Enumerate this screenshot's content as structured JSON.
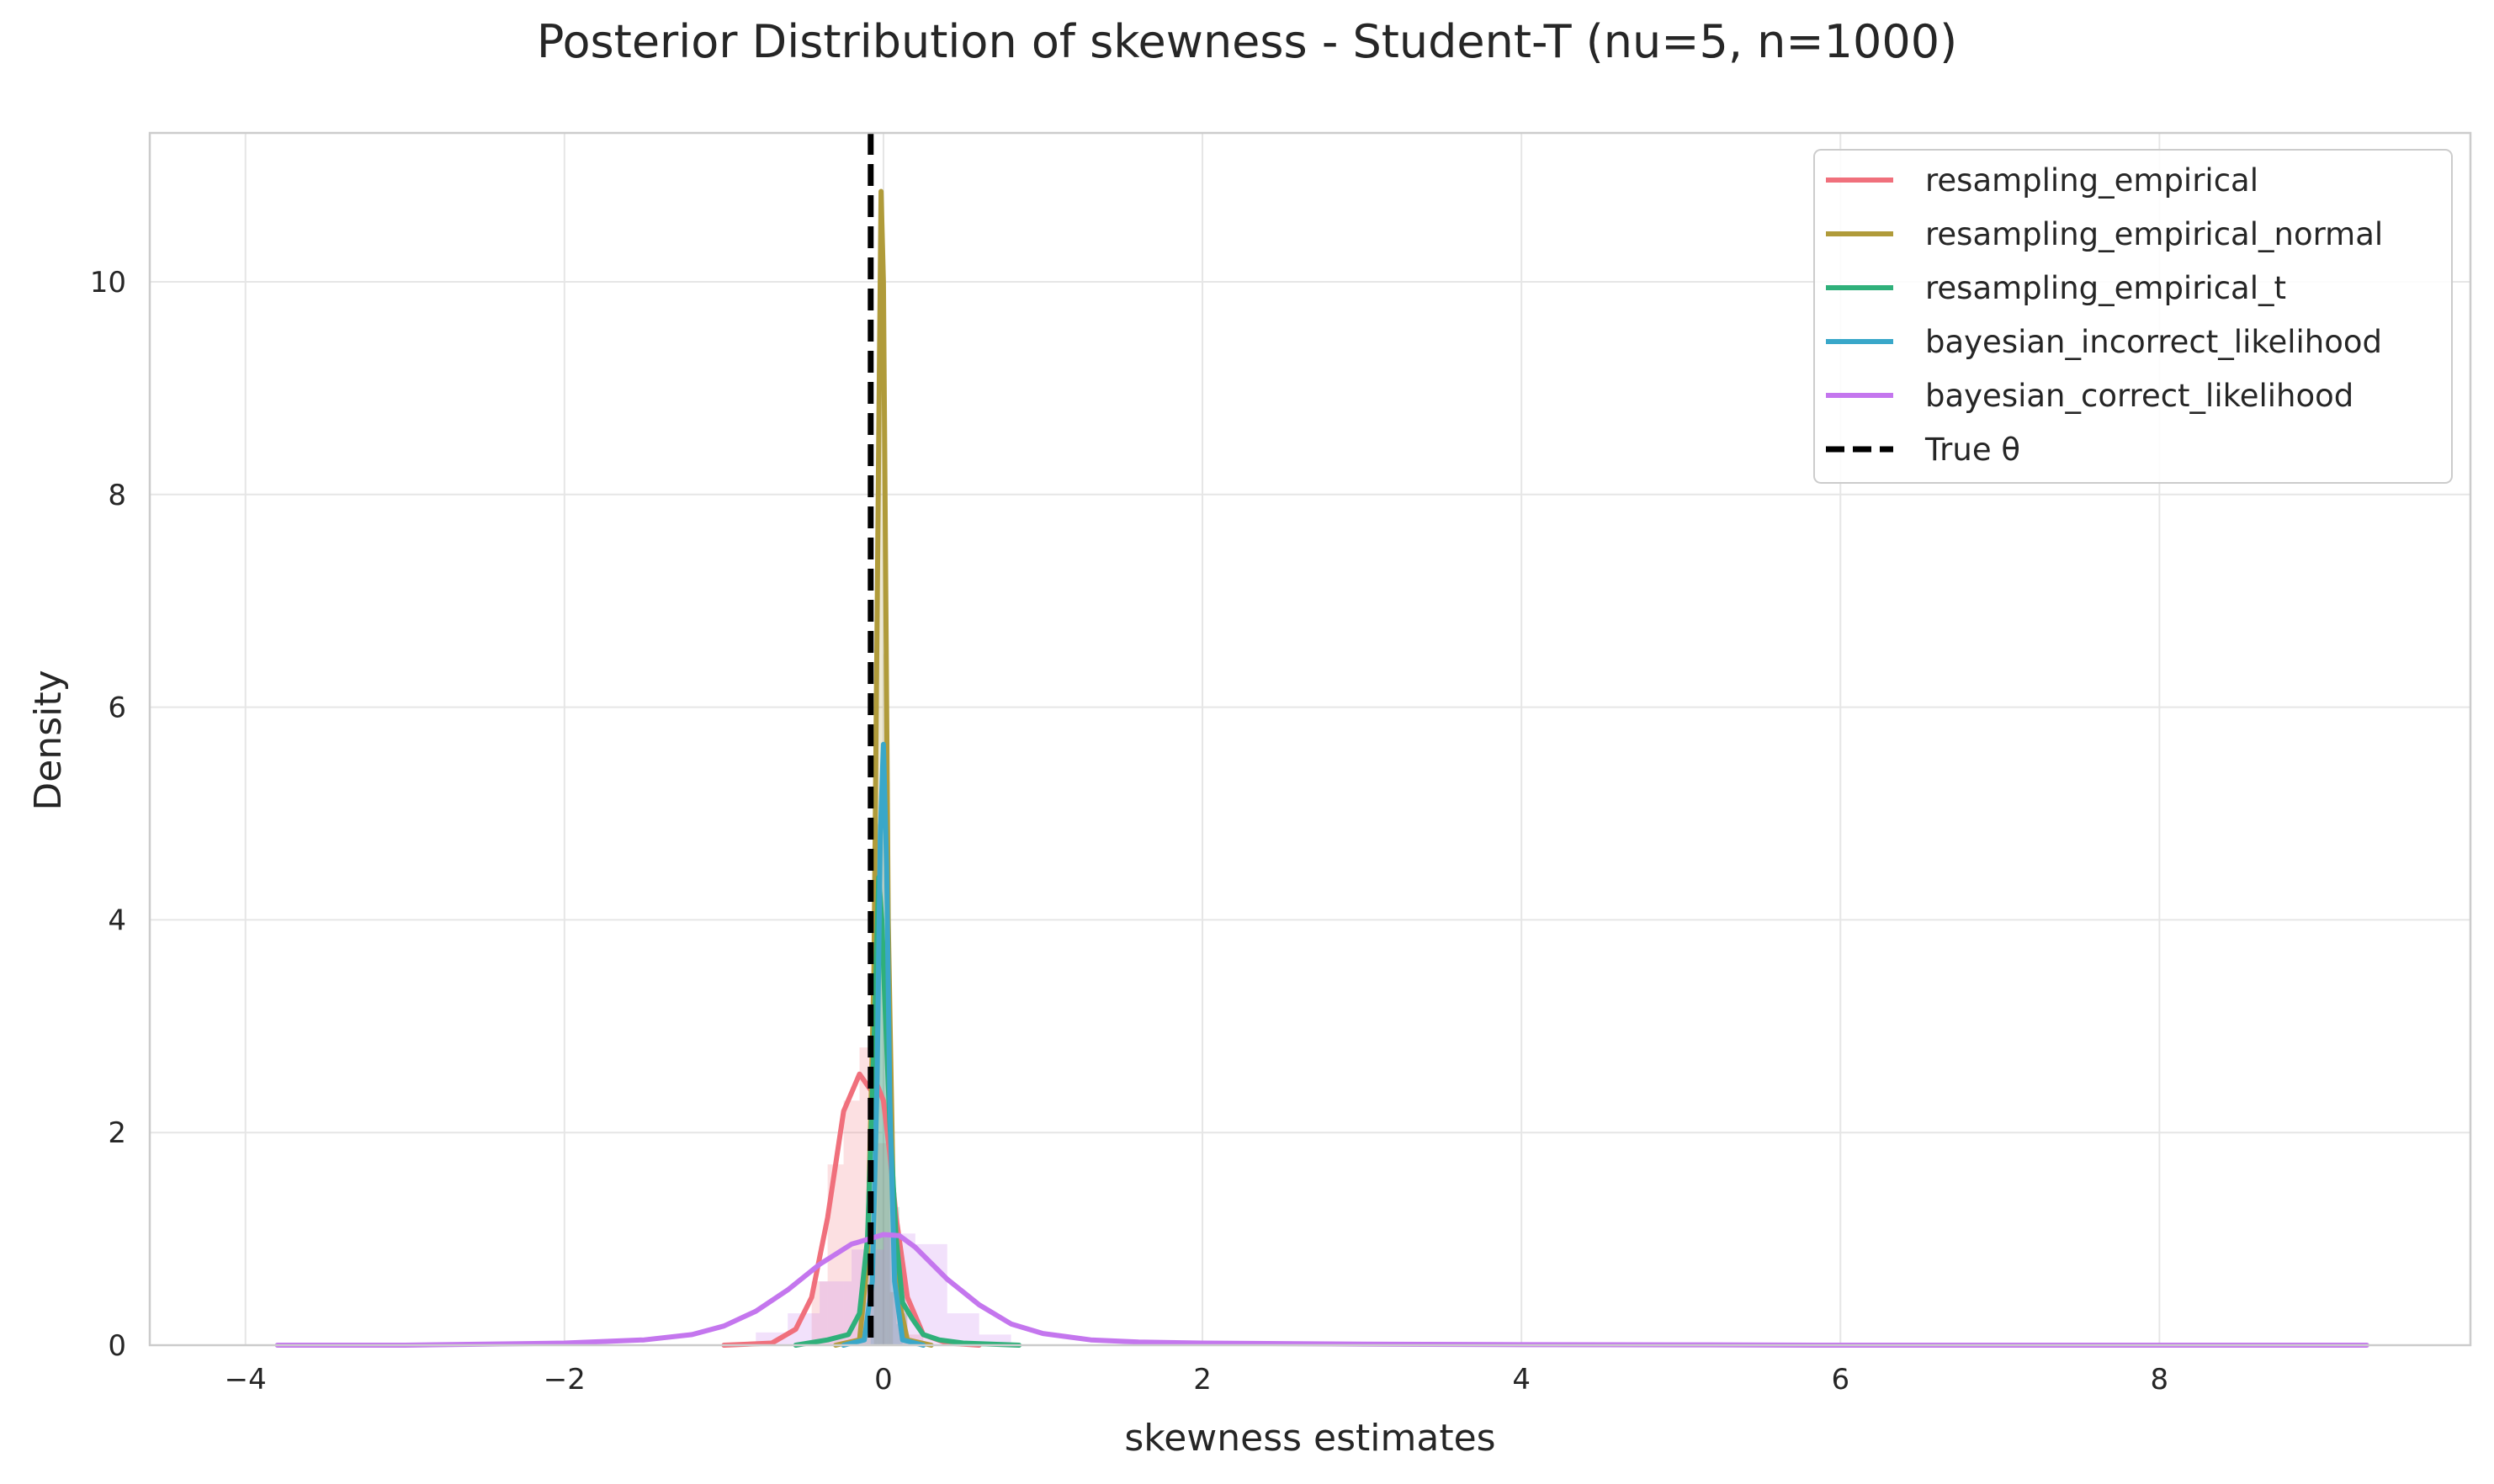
{
  "chart_data": {
    "type": "line",
    "title": "Posterior Distribution of skewness - Student-T (nu=5, n=1000)",
    "xlabel": "skewness estimates",
    "ylabel": "Density",
    "xlim": [
      -4.6,
      9.95
    ],
    "ylim": [
      0,
      11.4
    ],
    "x_ticks": [
      -4,
      -2,
      0,
      2,
      4,
      6,
      8
    ],
    "x_tick_labels": [
      "−4",
      "−2",
      "0",
      "2",
      "4",
      "6",
      "8"
    ],
    "y_ticks": [
      0,
      2,
      4,
      6,
      8,
      10
    ],
    "y_tick_labels": [
      "0",
      "2",
      "4",
      "6",
      "8",
      "10"
    ],
    "grid": true,
    "legend_placement": "top-right",
    "series": [
      {
        "name": "resampling_empirical",
        "color": "#f0707c",
        "x": [
          -1.0,
          -0.7,
          -0.55,
          -0.45,
          -0.35,
          -0.25,
          -0.15,
          -0.08,
          -0.04,
          0.0,
          0.04,
          0.08,
          0.15,
          0.25,
          0.4,
          0.6
        ],
        "y": [
          0.0,
          0.02,
          0.15,
          0.45,
          1.2,
          2.2,
          2.55,
          2.4,
          2.45,
          2.3,
          1.8,
          1.2,
          0.45,
          0.1,
          0.02,
          0.0
        ],
        "hist_bins": [
          -0.45,
          -0.35,
          -0.25,
          -0.15,
          -0.05,
          0.05,
          0.15
        ],
        "hist_heights": [
          0.6,
          1.7,
          2.3,
          2.8,
          1.9,
          0.5,
          0.1
        ]
      },
      {
        "name": "resampling_empirical_normal",
        "color": "#b09b3a",
        "x": [
          -0.3,
          -0.15,
          -0.1,
          -0.06,
          -0.03,
          -0.015,
          0.0,
          0.015,
          0.03,
          0.06,
          0.1,
          0.15,
          0.3
        ],
        "y": [
          0.0,
          0.05,
          0.8,
          3.5,
          8.5,
          10.85,
          10.0,
          7.0,
          4.0,
          1.5,
          0.4,
          0.05,
          0.0
        ],
        "hist_bins": [
          -0.06,
          -0.04,
          -0.02,
          0.0,
          0.02,
          0.04
        ],
        "hist_heights": [
          3.5,
          9.0,
          10.5,
          6.5,
          2.5,
          0.5
        ]
      },
      {
        "name": "resampling_empirical_t",
        "color": "#2fb07a",
        "x": [
          -0.55,
          -0.35,
          -0.22,
          -0.15,
          -0.1,
          -0.06,
          -0.03,
          -0.01,
          0.01,
          0.04,
          0.08,
          0.12,
          0.18,
          0.25,
          0.35,
          0.5,
          0.85
        ],
        "y": [
          0.0,
          0.05,
          0.1,
          0.3,
          1.0,
          2.8,
          4.4,
          4.0,
          3.2,
          2.1,
          1.0,
          0.4,
          0.25,
          0.1,
          0.05,
          0.02,
          0.0
        ],
        "hist_bins": [
          -0.15,
          -0.1,
          -0.05,
          0.0,
          0.05,
          0.1
        ],
        "hist_heights": [
          0.4,
          1.5,
          3.9,
          3.3,
          1.3,
          0.3
        ]
      },
      {
        "name": "bayesian_incorrect_likelihood",
        "color": "#39a7c9",
        "x": [
          -0.25,
          -0.12,
          -0.07,
          -0.04,
          -0.02,
          0.0,
          0.02,
          0.04,
          0.07,
          0.12,
          0.25
        ],
        "y": [
          0.0,
          0.05,
          0.6,
          2.5,
          4.8,
          5.65,
          4.5,
          2.3,
          0.6,
          0.05,
          0.0
        ],
        "hist_bins": [
          -0.08,
          -0.04,
          0.0,
          0.04,
          0.08
        ],
        "hist_heights": [
          1.0,
          4.9,
          5.3,
          1.4,
          0.2
        ]
      },
      {
        "name": "bayesian_correct_likelihood",
        "color": "#c476ee",
        "x": [
          -3.8,
          -3.0,
          -2.0,
          -1.5,
          -1.2,
          -1.0,
          -0.8,
          -0.6,
          -0.4,
          -0.2,
          0.0,
          0.1,
          0.2,
          0.4,
          0.6,
          0.8,
          1.0,
          1.3,
          1.6,
          2.0,
          3.0,
          4.0,
          5.0,
          6.0,
          7.0,
          8.0,
          9.3
        ],
        "y": [
          0.0,
          0.0,
          0.02,
          0.05,
          0.1,
          0.18,
          0.32,
          0.52,
          0.76,
          0.95,
          1.04,
          1.03,
          0.92,
          0.62,
          0.38,
          0.2,
          0.11,
          0.05,
          0.03,
          0.02,
          0.01,
          0.005,
          0.003,
          0.0,
          0.0,
          0.0,
          0.0
        ],
        "hist_bins": [
          -0.8,
          -0.6,
          -0.4,
          -0.2,
          0.0,
          0.2,
          0.4,
          0.6
        ],
        "hist_heights": [
          0.12,
          0.3,
          0.6,
          0.9,
          1.05,
          0.95,
          0.3,
          0.1
        ]
      }
    ],
    "vline": {
      "name": "True θ",
      "x": -0.08,
      "color": "#000000",
      "style": "dashed"
    }
  }
}
